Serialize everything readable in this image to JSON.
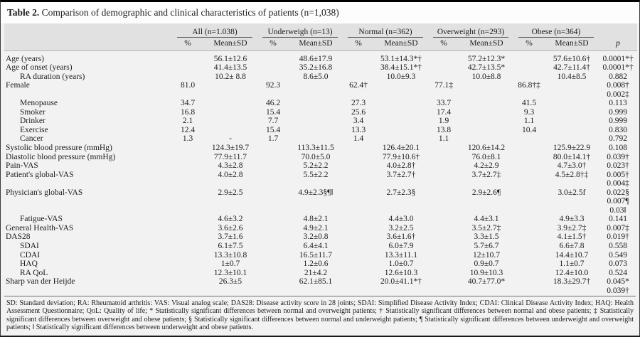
{
  "title": {
    "label": "Table 2.",
    "text": " Comparison of demographic and clinical characteristics of patients (n=1,038)"
  },
  "header": {
    "groups": [
      "All (n=1.038)",
      "Underweigh (n=13)",
      "Normal (n=362)",
      "Overweight (n=293)",
      "Obese (n=364)"
    ],
    "sub": [
      "%",
      "Mean±SD"
    ],
    "p": "p"
  },
  "rows": [
    {
      "label": "Age (years)",
      "indent": false,
      "cells": [
        "",
        "56.1±12.6",
        "",
        "48.6±17.9",
        "",
        "53.1±14.3*†",
        "",
        "57.2±12.3*",
        "",
        "57.6±10.6†"
      ],
      "p": [
        "0.0001*†"
      ]
    },
    {
      "label": "Age of onset (years)",
      "indent": false,
      "cells": [
        "",
        "41.4±13.5",
        "",
        "35.2±16.8",
        "",
        "38.4±15.1*†",
        "",
        "42.7±13.5*",
        "",
        "42.7±11.4†"
      ],
      "p": [
        "0.0001*†"
      ]
    },
    {
      "label": "RA duration (years)",
      "indent": true,
      "cells": [
        "",
        "10.2± 8.8",
        "",
        "8.6±5.0",
        "",
        "10.0±9.3",
        "",
        "10.0±8.8",
        "",
        "10.4±8.5"
      ],
      "p": [
        "0.882"
      ]
    },
    {
      "label": "Female",
      "indent": false,
      "cells": [
        "81.0",
        "",
        "92.3",
        "",
        "62.4†",
        "",
        "77.1‡",
        "",
        "86.8†‡",
        ""
      ],
      "p": [
        "0.008†",
        "0.002‡"
      ]
    },
    {
      "label": "Menopause",
      "indent": true,
      "cells": [
        "34.7",
        "",
        "46.2",
        "",
        "27.3",
        "",
        "33.7",
        "",
        "41.5",
        ""
      ],
      "p": [
        "0.113"
      ]
    },
    {
      "label": "Smoker",
      "indent": true,
      "cells": [
        "16.8",
        "",
        "15.4",
        "",
        "25.6",
        "",
        "17.4",
        "",
        "9.3",
        ""
      ],
      "p": [
        "0.999"
      ]
    },
    {
      "label": "Drinker",
      "indent": true,
      "cells": [
        "2.1",
        "",
        "7.7",
        "",
        "3.4",
        "",
        "1.9",
        "",
        "1.1",
        ""
      ],
      "p": [
        "0.999"
      ]
    },
    {
      "label": "Exercise",
      "indent": true,
      "cells": [
        "12.4",
        "",
        "15.4",
        "",
        "13.3",
        "",
        "13.8",
        "",
        "10.4",
        ""
      ],
      "p": [
        "0.830"
      ]
    },
    {
      "label": "Cancer",
      "indent": true,
      "cells": [
        "1.3",
        "-",
        "1.7",
        "",
        "1.4",
        "",
        "1.1",
        "",
        "",
        ""
      ],
      "p": [
        "0.792"
      ]
    },
    {
      "label": "Systolic blood pressure (mmHg)",
      "indent": false,
      "cells": [
        "",
        "124.3±19.7",
        "",
        "113.3±11.5",
        "",
        "126.4±20.1",
        "",
        "120.6±14.2",
        "",
        "125.9±22.9"
      ],
      "p": [
        "0.108"
      ]
    },
    {
      "label": "Diastolic blood pressure (mmHg)",
      "indent": false,
      "cells": [
        "",
        "77.9±11.7",
        "",
        "70.0±5.0",
        "",
        "77.9±10.6†",
        "",
        "76.0±8.1",
        "",
        "80.0±14.1†"
      ],
      "p": [
        "0.039†"
      ]
    },
    {
      "label": "Pain-VAS",
      "indent": false,
      "cells": [
        "",
        "4.3±2.8",
        "",
        "5.2±2.2",
        "",
        "4.0±2.8†",
        "",
        "4.2±2.9",
        "",
        "4.7±3.0†"
      ],
      "p": [
        "0.023†"
      ]
    },
    {
      "label": "Patient's global-VAS",
      "indent": false,
      "cells": [
        "",
        "4.0±2.8",
        "",
        "5.5±2.2",
        "",
        "3.7±2.7†",
        "",
        "3.7±2.7‡",
        "",
        "4.5±2.8†‡"
      ],
      "p": [
        "0.005†",
        "0.004‡"
      ]
    },
    {
      "label": "Physician's global-VAS",
      "indent": false,
      "cells": [
        "",
        "2.9±2.5",
        "",
        "4.9±2.3§¶‖",
        "",
        "2.7±2.3§",
        "",
        "2.9±2.6¶",
        "",
        "3.0±2.5f"
      ],
      "p": [
        "0.022§",
        "0.007¶",
        "0.03‖"
      ]
    },
    {
      "label": "Fatigue-VAS",
      "indent": true,
      "cells": [
        "",
        "4.6±3.2",
        "",
        "4.8±2.1",
        "",
        "4.4±3.0",
        "",
        "4.4±3.1",
        "",
        "4.9±3.3"
      ],
      "p": [
        "0.141"
      ]
    },
    {
      "label": "General Health-VAS",
      "indent": false,
      "cells": [
        "",
        "3.6±2.6",
        "",
        "4.9±2.1",
        "",
        "3.2±2.5",
        "",
        "3.5±2.7‡",
        "",
        "3.9±2.7‡"
      ],
      "p": [
        "0.007‡"
      ]
    },
    {
      "label": "DAS28",
      "indent": false,
      "cells": [
        "",
        "3.7±1.6",
        "",
        "3.2±0.8",
        "",
        "3.6±1.6†",
        "",
        "3.3±1.5",
        "",
        "4.1±1.5†"
      ],
      "p": [
        "0.019†"
      ]
    },
    {
      "label": "SDAI",
      "indent": true,
      "cells": [
        "",
        "6.1±7.5",
        "",
        "6.4±4.1",
        "",
        "6.0±7.9",
        "",
        "5.7±6.7",
        "",
        "6.6±7.8"
      ],
      "p": [
        "0.558"
      ]
    },
    {
      "label": "CDAI",
      "indent": true,
      "cells": [
        "",
        "13.3±10.8",
        "",
        "16.5±11.7",
        "",
        "13.3±11.1",
        "",
        "12±10.7",
        "",
        "14.4±10.7"
      ],
      "p": [
        "0.549"
      ]
    },
    {
      "label": "HAQ",
      "indent": true,
      "cells": [
        "",
        "1±0.7",
        "",
        "1.2±0.6",
        "",
        "1.0±0.7",
        "",
        "0.9±0.7",
        "",
        "1.1±0.7"
      ],
      "p": [
        "0.073"
      ]
    },
    {
      "label": "RA QoL",
      "indent": true,
      "cells": [
        "",
        "12.3±10.1",
        "",
        "21±4.2",
        "",
        "12.6±10.3",
        "",
        "10.9±10.3",
        "",
        "12.4±10.0"
      ],
      "p": [
        "0.524"
      ]
    },
    {
      "label": "Sharp van der Heijde",
      "indent": false,
      "cells": [
        "",
        "26.3±5",
        "",
        "62.1±85.1",
        "",
        "20.0±41.1*†",
        "",
        "40.7±77.0*",
        "",
        "18.3±29.7†"
      ],
      "p": [
        "0.045*",
        "0.039†"
      ]
    }
  ],
  "footnote": "SD: Standard deviation; RA: Rheumatoid arthritis: VAS: Visual analog scale; DAS28: Disease activity score in 28 joints; SDAI: Simplified Disease Activity Index; CDAI: Clinical Disease Activity Index; HAQ: Health Assessment Questionnaire; QoL: Quality of life; * Statistically significant differences between normal and overweight patients; † Statistically significant differences between normal and obese patients; ‡ Statistically significant differences between overweight and obese patients; § Statistically significant differences between normal and underweight patients; ¶ Statistically significant differences between underweight and overweight patients; ‖ Statistically significant differences between underweight and obese patients.",
  "colors": {
    "header_bg": "#e1e1e1",
    "body_bg": "#f2f2f2",
    "title_bg": "#fdfdfd",
    "top_border": "#000000",
    "text": "#1c1c1c"
  }
}
